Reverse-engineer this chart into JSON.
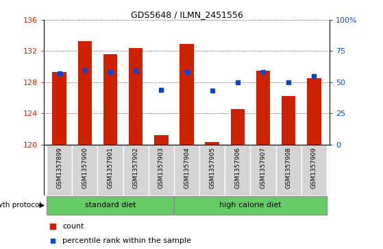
{
  "title": "GDS5648 / ILMN_2451556",
  "samples": [
    "GSM1357899",
    "GSM1357900",
    "GSM1357901",
    "GSM1357902",
    "GSM1357903",
    "GSM1357904",
    "GSM1357905",
    "GSM1357906",
    "GSM1357907",
    "GSM1357908",
    "GSM1357909"
  ],
  "count_values": [
    129.3,
    133.3,
    131.6,
    132.4,
    121.2,
    132.9,
    120.3,
    124.5,
    129.5,
    126.2,
    128.5
  ],
  "percentile_values": [
    57,
    60,
    58,
    59,
    44,
    58,
    43,
    50,
    58,
    50,
    55
  ],
  "ylim": [
    120,
    136
  ],
  "y_ticks": [
    120,
    124,
    128,
    132,
    136
  ],
  "y2_ticks": [
    0,
    25,
    50,
    75,
    100
  ],
  "bar_color": "#cc2200",
  "dot_color": "#1144cc",
  "standard_diet_indices": [
    0,
    1,
    2,
    3,
    4
  ],
  "high_calorie_indices": [
    5,
    6,
    7,
    8,
    9,
    10
  ],
  "standard_diet_label": "standard diet",
  "high_calorie_label": "high calorie diet",
  "protocol_label": "growth protocol",
  "legend_count": "count",
  "legend_percentile": "percentile rank within the sample",
  "grid_color": "#000000",
  "xticklabel_bg": "#cccccc",
  "diet_bg": "#66cc66"
}
